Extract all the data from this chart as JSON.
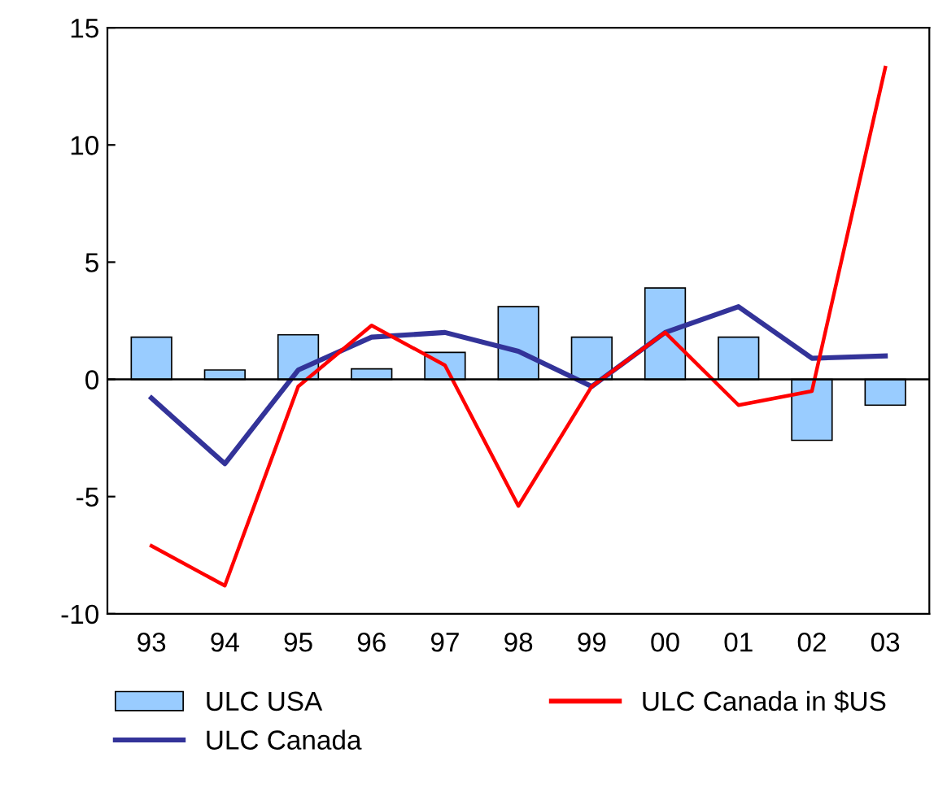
{
  "chart_data": {
    "type": "bar",
    "categories": [
      "93",
      "94",
      "95",
      "96",
      "97",
      "98",
      "99",
      "00",
      "01",
      "02",
      "03"
    ],
    "series": [
      {
        "name": "ULC USA",
        "color": "#99ccff",
        "values": [
          1.8,
          0.4,
          1.9,
          0.45,
          1.15,
          3.1,
          1.8,
          3.9,
          1.8,
          -2.6,
          -1.1
        ]
      },
      {
        "name": "ULC Canada",
        "type": "line",
        "color": "#333399",
        "values": [
          -0.8,
          -3.6,
          0.4,
          1.8,
          2.0,
          1.2,
          -0.3,
          2.0,
          3.1,
          0.9,
          1.0
        ]
      },
      {
        "name": "ULC Canada in $US",
        "type": "line",
        "color": "#ff0000",
        "values": [
          -7.1,
          -8.8,
          -0.3,
          2.3,
          0.6,
          -5.4,
          -0.3,
          2.0,
          -1.1,
          -0.5,
          13.3
        ]
      }
    ],
    "ylim": [
      -10,
      15
    ],
    "yticks": [
      -10,
      -5,
      0,
      5,
      10,
      15
    ],
    "grid": false,
    "ref_lines": [
      {
        "axis": "y",
        "value": 0,
        "color": "#000000"
      }
    ],
    "legend": "bottom",
    "marker": "none",
    "line_style": "solid"
  }
}
